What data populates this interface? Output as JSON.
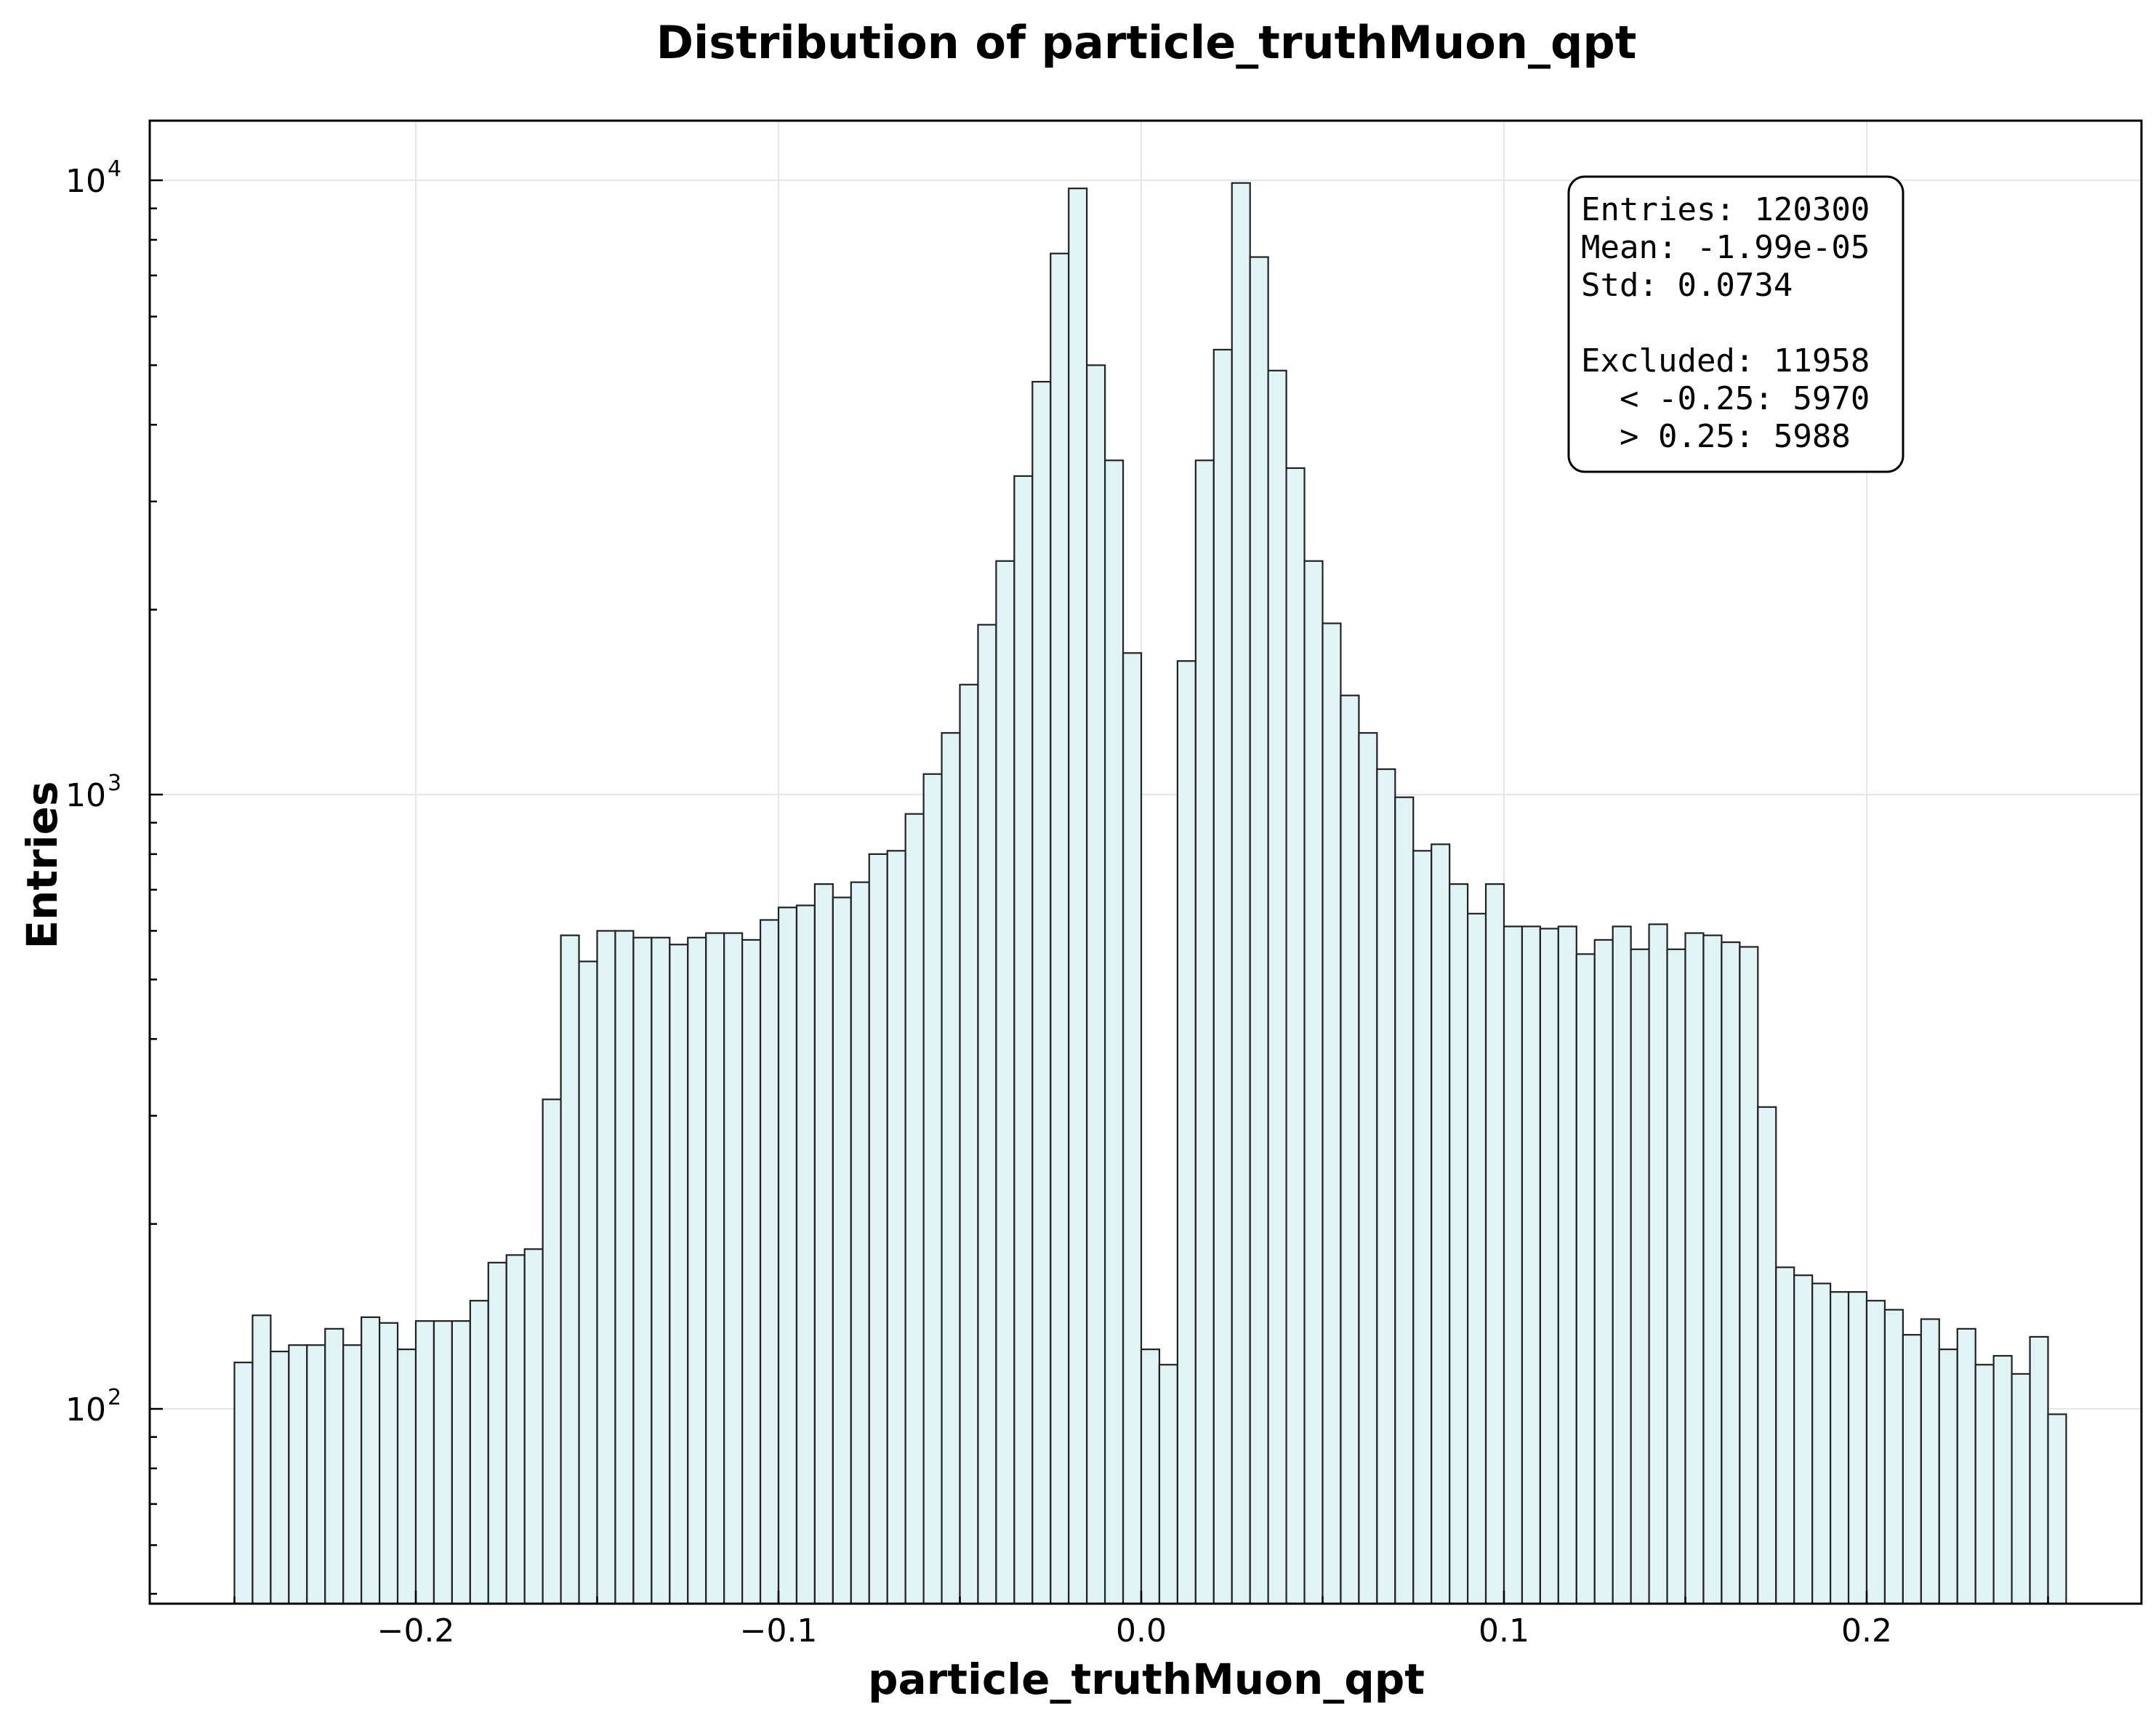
{
  "chart_data": {
    "type": "bar",
    "title": "Distribution of particle_truthMuon_qpt",
    "xlabel": "particle_truthMuon_qpt",
    "ylabel": "Entries",
    "xlim": [
      -0.275,
      0.275
    ],
    "ylim": [
      50,
      12000
    ],
    "yscale": "log",
    "grid": true,
    "bin_start": -0.25,
    "bin_width": 0.005,
    "x_ticks": [
      {
        "value": -0.2,
        "label": "−0.2"
      },
      {
        "value": -0.1,
        "label": "−0.1"
      },
      {
        "value": 0.0,
        "label": "0.0"
      },
      {
        "value": 0.1,
        "label": "0.1"
      },
      {
        "value": 0.2,
        "label": "0.2"
      }
    ],
    "y_ticks": [
      {
        "value": 100,
        "base": "10",
        "exp": "2"
      },
      {
        "value": 1000,
        "base": "10",
        "exp": "3"
      },
      {
        "value": 10000,
        "base": "10",
        "exp": "4"
      }
    ],
    "values": [
      119,
      142,
      124,
      127,
      127,
      135,
      127,
      141,
      138,
      125,
      139,
      139,
      139,
      150,
      173,
      178,
      182,
      319,
      590,
      535,
      600,
      600,
      585,
      585,
      570,
      585,
      595,
      595,
      580,
      625,
      655,
      660,
      715,
      680,
      720,
      800,
      810,
      930,
      1080,
      1260,
      1510,
      1890,
      2400,
      3300,
      4700,
      7600,
      9700,
      5000,
      3500,
      1700,
      125,
      118,
      1650,
      3500,
      5300,
      9900,
      7500,
      4900,
      3400,
      2400,
      1900,
      1450,
      1260,
      1100,
      990,
      810,
      830,
      715,
      640,
      715,
      610,
      610,
      605,
      610,
      550,
      580,
      610,
      560,
      615,
      560,
      595,
      590,
      575,
      565,
      310,
      170,
      165,
      160,
      155,
      155,
      150,
      145,
      132,
      140,
      125,
      135,
      118,
      122,
      114,
      131,
      98
    ],
    "stats_box": {
      "lines": [
        "Entries: 120300",
        "Mean: -1.99e-05",
        "Std: 0.0734",
        "",
        "Excluded: 11958",
        "  < -0.25: 5970",
        "  > 0.25: 5988"
      ]
    },
    "bar_fill": "#e0f3f5",
    "bar_edge": "#222222"
  }
}
